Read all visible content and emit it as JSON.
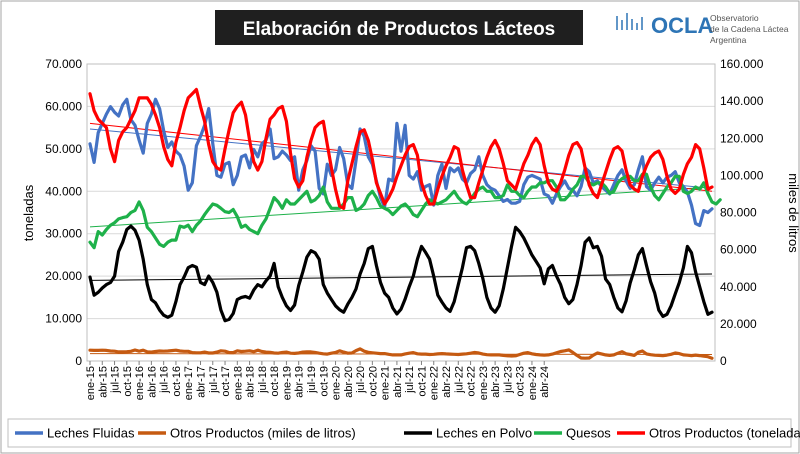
{
  "title": "Elaboración de Productos Lácteos",
  "logo": {
    "name": "OCLA",
    "line1": "Observatorio",
    "line2": "de la Cadena Láctea",
    "line3": "Argentina"
  },
  "colors": {
    "frame": "#a6a6a6",
    "grid": "#d9d9d9",
    "title_bg": "#1f1f1f",
    "title_fg": "#ffffff",
    "logo": "#2e75b6",
    "leches_fluidas": "#4472c4",
    "otros_litros": "#c55a11",
    "leches_polvo": "#000000",
    "quesos": "#1eb14a",
    "otros_toneladas": "#ff0000"
  },
  "chart_data": {
    "type": "line",
    "ylabel": "toneladas",
    "y2label": "miles de litros",
    "ylim": [
      0,
      70000
    ],
    "y2lim": [
      0,
      160000
    ],
    "yticks": [
      "0",
      "10.000",
      "20.000",
      "30.000",
      "40.000",
      "50.000",
      "60.000",
      "70.000"
    ],
    "y2ticks": [
      "0",
      "20.000",
      "40.000",
      "60.000",
      "80.000",
      "100.000",
      "120.000",
      "140.000",
      "160.000"
    ],
    "xticks": [
      "ene-15",
      "abr-15",
      "jul-15",
      "oct-15",
      "ene-16",
      "abr-16",
      "jul-16",
      "oct-16",
      "ene-17",
      "abr-17",
      "jul-17",
      "oct-17",
      "ene-18",
      "abr-18",
      "jul-18",
      "oct-18",
      "ene-19",
      "abr-19",
      "jul-19",
      "oct-19",
      "ene-20",
      "abr-20",
      "jul-20",
      "oct-20",
      "ene-21",
      "abr-21",
      "jul-21",
      "oct-21",
      "ene-22",
      "abr-22",
      "jul-22",
      "oct-22",
      "ene-23",
      "abr-23",
      "jul-23",
      "oct-23",
      "ene-24",
      "abr-24"
    ],
    "grid": true,
    "legend_position": "bottom",
    "series": [
      {
        "name": "Leches Fluidas",
        "axis": "right",
        "trend": [
          125000,
          93000
        ],
        "values": [
          117000,
          107000,
          123000,
          128000,
          133000,
          137000,
          134000,
          132000,
          138000,
          141000,
          130000,
          127000,
          119000,
          112000,
          128000,
          133000,
          141000,
          136000,
          124000,
          115000,
          118000,
          113000,
          111000,
          105000,
          92000,
          96000,
          116000,
          121000,
          127000,
          136000,
          117000,
          100000,
          99000,
          106000,
          107000,
          95000,
          100000,
          110000,
          111000,
          104000,
          114000,
          110000,
          117000,
          119000,
          125000,
          109000,
          110000,
          113000,
          111000,
          108000,
          110000,
          92000,
          103000,
          108000,
          116000,
          113000,
          93000,
          90000,
          106000,
          100000,
          103000,
          115000,
          109000,
          95000,
          93000,
          108000,
          125000,
          121000,
          110000,
          106000,
          97000,
          88000,
          83000,
          98000,
          97000,
          128000,
          113000,
          127000,
          100000,
          98000,
          102000,
          92000,
          94000,
          95000,
          84000,
          100000,
          106000,
          93000,
          104000,
          102000,
          104000,
          98000,
          96000,
          101000,
          103000,
          110000,
          100000,
          95000,
          93000,
          92000,
          89000,
          86000,
          87000,
          85000,
          85000,
          86000,
          95000,
          99000,
          100000,
          99000,
          98000,
          90000,
          89000,
          85000,
          90000,
          94000,
          97000,
          93000,
          92000,
          89000,
          94000,
          104000,
          102000,
          96000,
          97000,
          94000,
          92000,
          90000,
          95000,
          100000,
          103000,
          97000,
          93000,
          95000,
          103000,
          110000,
          94000,
          92000,
          96000,
          99000,
          96000,
          99000,
          100000,
          102000,
          96000,
          94000,
          91000,
          84000,
          74000,
          73000,
          81000,
          80000,
          82000
        ]
      },
      {
        "name": "Otros Productos (miles de litros)",
        "axis": "right",
        "trend": [
          4000,
          3500
        ],
        "values": [
          5800,
          5700,
          5700,
          5800,
          5700,
          5400,
          5300,
          4900,
          4900,
          5000,
          5200,
          5900,
          5300,
          5800,
          4900,
          4800,
          5100,
          5400,
          5300,
          5400,
          5600,
          5800,
          5400,
          5200,
          5200,
          4500,
          4400,
          4400,
          4800,
          4300,
          4300,
          4800,
          5500,
          5300,
          4600,
          4500,
          5500,
          5100,
          5300,
          5500,
          5000,
          5800,
          5100,
          4800,
          4700,
          4300,
          4200,
          4600,
          4800,
          4200,
          4100,
          4300,
          4800,
          4900,
          4900,
          4600,
          4200,
          3900,
          3700,
          4200,
          4600,
          5500,
          4800,
          4200,
          4300,
          5600,
          6500,
          5300,
          4700,
          4400,
          4200,
          4000,
          4000,
          3600,
          3300,
          3300,
          3300,
          3800,
          4200,
          4500,
          3900,
          3700,
          3700,
          3500,
          3600,
          3800,
          4000,
          3800,
          3700,
          3600,
          3500,
          3700,
          3900,
          4200,
          4600,
          4300,
          3700,
          3400,
          3300,
          3300,
          3300,
          3000,
          2800,
          2700,
          2800,
          3500,
          4200,
          4500,
          3900,
          3500,
          3300,
          3200,
          3300,
          3700,
          4400,
          5100,
          5500,
          6000,
          4600,
          3000,
          1600,
          1500,
          1600,
          3100,
          4300,
          3800,
          3300,
          3000,
          3300,
          4200,
          5000,
          3900,
          3500,
          3000,
          4700,
          5400,
          3800,
          3400,
          3100,
          3000,
          2900,
          3200,
          3600,
          4300,
          4000,
          3300,
          3100,
          2900,
          3200,
          2900,
          2600,
          2300,
          1500
        ]
      },
      {
        "name": "Leches en Polvo",
        "axis": "left",
        "trend": [
          19000,
          20500
        ],
        "values": [
          19800,
          15500,
          16200,
          17200,
          18000,
          18500,
          20000,
          25800,
          28000,
          31000,
          31800,
          30800,
          28500,
          24000,
          18000,
          14500,
          13700,
          12000,
          10800,
          10300,
          10800,
          14000,
          18000,
          19800,
          22000,
          22500,
          22100,
          18500,
          18000,
          20000,
          18500,
          16200,
          12000,
          9500,
          9800,
          11200,
          14500,
          15000,
          15200,
          14800,
          16700,
          18000,
          17500,
          18900,
          20000,
          23000,
          17500,
          15000,
          13000,
          11900,
          13200,
          17800,
          21000,
          24500,
          26000,
          25500,
          24000,
          18000,
          16000,
          14500,
          13000,
          12100,
          11500,
          13400,
          15000,
          17000,
          20500,
          23000,
          26500,
          27000,
          22500,
          18500,
          16000,
          15000,
          12500,
          11100,
          12200,
          14600,
          17500,
          20000,
          24000,
          27000,
          25600,
          24000,
          20000,
          15500,
          13900,
          12500,
          11700,
          14000,
          18000,
          22000,
          26700,
          27000,
          26000,
          23000,
          19500,
          15000,
          12500,
          11500,
          13000,
          17000,
          22000,
          27000,
          31500,
          30500,
          29000,
          27000,
          25000,
          23500,
          22000,
          18200,
          21700,
          22500,
          20000,
          18000,
          15000,
          13500,
          14500,
          18000,
          22500,
          28000,
          29000,
          26700,
          27000,
          24700,
          19300,
          18000,
          15000,
          12500,
          11600,
          14200,
          18400,
          21500,
          25000,
          26500,
          22500,
          18700,
          16000,
          12000,
          10500,
          11000,
          13000,
          15800,
          18500,
          22000,
          27000,
          25500,
          21000,
          17500,
          14000,
          11000,
          11500
        ]
      },
      {
        "name": "Quesos",
        "axis": "left",
        "trend": [
          31600,
          41000
        ],
        "values": [
          28000,
          26700,
          30500,
          29700,
          31000,
          32000,
          32600,
          33500,
          33800,
          34000,
          35000,
          35500,
          37500,
          35500,
          31500,
          30500,
          29000,
          27500,
          27000,
          28000,
          28500,
          28500,
          31800,
          31500,
          32000,
          30500,
          32000,
          33000,
          34500,
          35800,
          37000,
          36700,
          36000,
          35200,
          35000,
          35700,
          34000,
          31500,
          32000,
          31000,
          30500,
          30000,
          32000,
          33500,
          36000,
          38500,
          37500,
          36000,
          38000,
          37000,
          37000,
          38000,
          39000,
          40000,
          37500,
          38000,
          39000,
          41000,
          37500,
          36000,
          36000,
          36000,
          37000,
          38500,
          38500,
          35500,
          36000,
          37000,
          39000,
          40000,
          38500,
          36500,
          36000,
          35500,
          34500,
          35500,
          36500,
          37000,
          36000,
          34500,
          34000,
          35500,
          37000,
          38000,
          37500,
          37000,
          37500,
          38000,
          39000,
          40000,
          38500,
          37500,
          37000,
          38000,
          39500,
          40500,
          41000,
          40000,
          40000,
          38500,
          38500,
          39000,
          41500,
          40000,
          40000,
          39000,
          38500,
          40000,
          41000,
          41000,
          42000,
          42000,
          42500,
          42500,
          41000,
          38000,
          38000,
          39000,
          40500,
          41500,
          43500,
          43500,
          42000,
          41500,
          42000,
          42000,
          41000,
          39500,
          40000,
          42000,
          43000,
          43500,
          43500,
          42500,
          42500,
          44000,
          44000,
          41000,
          39000,
          38000,
          39500,
          41000,
          42000,
          43500,
          43500,
          40000,
          39500,
          40000,
          41000,
          40500,
          42000,
          39500,
          37500,
          37000,
          38000
        ]
      },
      {
        "name": "Otros Productos (toneladas)",
        "axis": "left",
        "trend": [
          56000,
          40000
        ],
        "values": [
          63000,
          59000,
          57000,
          56000,
          55000,
          50000,
          47000,
          52000,
          54000,
          55000,
          57000,
          59000,
          62000,
          62000,
          62000,
          60500,
          58000,
          55000,
          50500,
          47500,
          46000,
          51500,
          55000,
          59000,
          62000,
          63000,
          64000,
          60000,
          56500,
          51000,
          47000,
          45500,
          45000,
          50000,
          54500,
          58500,
          60000,
          61000,
          58000,
          52000,
          47000,
          45000,
          47000,
          52500,
          57000,
          58000,
          59500,
          60000,
          56500,
          49000,
          43000,
          41000,
          42500,
          48000,
          52000,
          55000,
          56000,
          56500,
          51000,
          45500,
          40500,
          36500,
          36000,
          42500,
          46500,
          50500,
          54000,
          54500,
          52000,
          47500,
          42000,
          39500,
          37000,
          38500,
          40500,
          43500,
          46000,
          48500,
          50500,
          51000,
          48500,
          42000,
          39000,
          37000,
          37000,
          40500,
          43500,
          46000,
          48000,
          50500,
          50000,
          45000,
          41500,
          38500,
          38500,
          42000,
          45000,
          48000,
          50500,
          52000,
          50000,
          46500,
          42500,
          41500,
          40500,
          43500,
          46500,
          48500,
          51000,
          52500,
          51000,
          46000,
          42000,
          40500,
          40000,
          42000,
          45000,
          48500,
          51000,
          51500,
          50000,
          45500,
          41500,
          39500,
          38500,
          41500,
          44500,
          47500,
          50000,
          50500,
          49500,
          45000,
          41500,
          40500,
          40000,
          43500,
          46000,
          48000,
          49000,
          49500,
          47500,
          43500,
          40500,
          39500,
          40500,
          44000,
          46500,
          48000,
          51000,
          50000,
          45500,
          40500,
          41000
        ]
      }
    ]
  }
}
